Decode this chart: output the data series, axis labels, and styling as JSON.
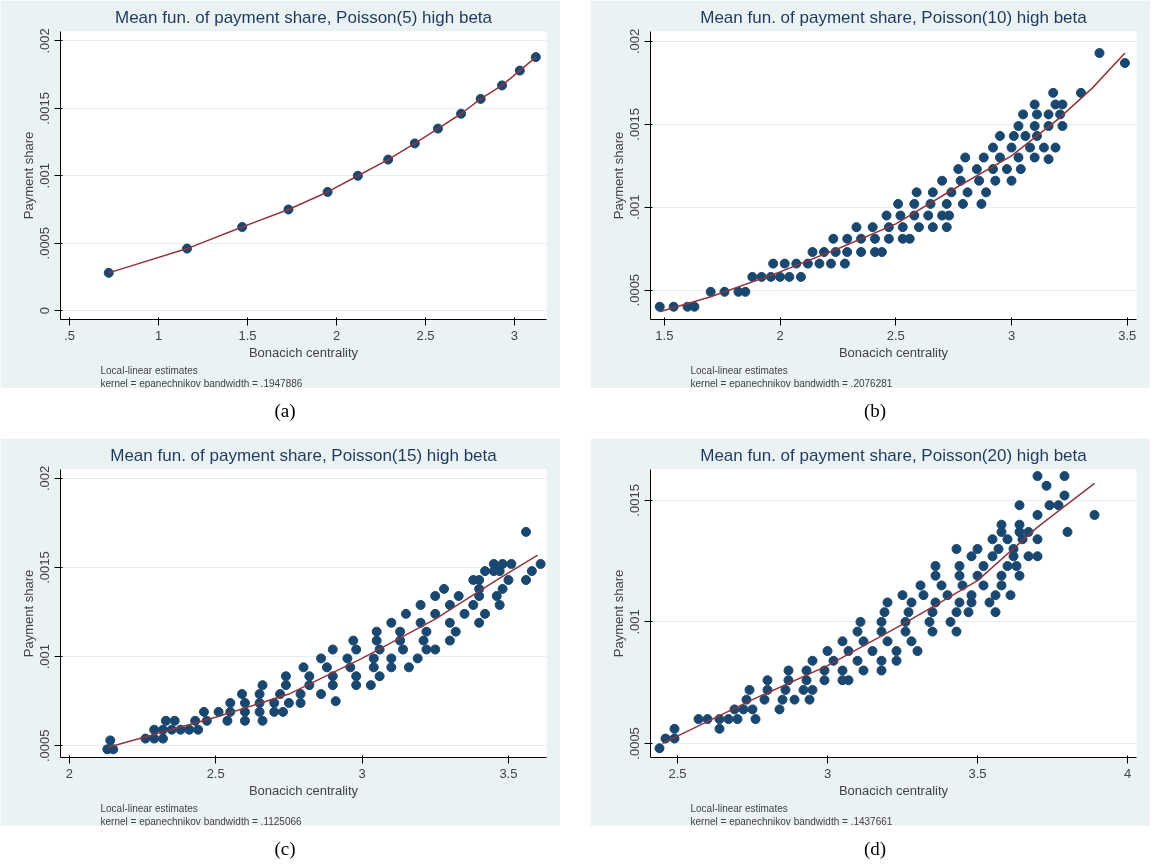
{
  "chart_data": [
    {
      "type": "scatter",
      "title": "Mean fun. of payment share, Poisson(5) high beta",
      "xlabel": "Bonacich centrality",
      "ylabel": "Payment share",
      "xlim": [
        0.449,
        3.18
      ],
      "ylim": [
        -6.6e-05,
        0.00207
      ],
      "xticks": [
        {
          "value": 0.5,
          "label": ".5"
        },
        1,
        1.5,
        2,
        2.5,
        3
      ],
      "yticks": [
        {
          "value": 0,
          "label": "0"
        },
        {
          "value": 0.0005,
          "label": ".0005"
        },
        {
          "value": 0.001,
          "label": ".001"
        },
        {
          "value": 0.0015,
          "label": ".0015"
        },
        {
          "value": 0.002,
          "label": ".002"
        }
      ],
      "grid": "y",
      "annotations": [
        "Local-linear estimates",
        "kernel = epanechnikov bandwidth = .1947886",
        "(a)"
      ],
      "series": [
        {
          "marker": "circle",
          "color": "#1a476f",
          "x": [
            0.72,
            1.16,
            1.47,
            1.73,
            1.95,
            2.12,
            2.29,
            2.44,
            2.57,
            2.7,
            2.81,
            2.93,
            3.03,
            3.12
          ],
          "values": [
            0.00028,
            0.00046,
            0.00062,
            0.00075,
            0.00088,
            0.001,
            0.00112,
            0.00124,
            0.00135,
            0.00146,
            0.00157,
            0.00167,
            0.00178,
            0.00188
          ]
        },
        {
          "type": "line",
          "color": "#90353b",
          "x": [
            0.72,
            1.16,
            1.47,
            1.73,
            1.95,
            2.12,
            2.29,
            2.44,
            2.57,
            2.7,
            2.81,
            2.93,
            3.03,
            3.12
          ],
          "values": [
            0.00028,
            0.00046,
            0.00062,
            0.00075,
            0.00088,
            0.001,
            0.00112,
            0.00124,
            0.00135,
            0.00146,
            0.00157,
            0.00167,
            0.00178,
            0.00188
          ]
        }
      ]
    },
    {
      "type": "scatter",
      "title": "Mean fun. of payment share, Poisson(10) high beta",
      "xlabel": "Bonacich centrality",
      "ylabel": "Payment share",
      "xlim": [
        1.44,
        3.54
      ],
      "ylim": [
        0.000323,
        0.00206
      ],
      "xticks": [
        1.5,
        2,
        2.5,
        3,
        3.5
      ],
      "yticks": [
        {
          "value": 0.0005,
          "label": ".0005"
        },
        {
          "value": 0.001,
          "label": ".001"
        },
        {
          "value": 0.0015,
          "label": ".0015"
        },
        {
          "value": 0.002,
          "label": ".002"
        }
      ],
      "grid": "y",
      "annotations": [
        "Local-linear estimates",
        "kernel = epanechnikov bandwidth = .2076281",
        "(b)"
      ],
      "series": [
        {
          "marker": "circle",
          "color": "#1a476f",
          "x": [
            1.48,
            1.54,
            1.6,
            1.63,
            1.7,
            1.76,
            1.82,
            1.85,
            1.88,
            1.92,
            1.96,
            2.0,
            2.04,
            2.09,
            1.97,
            2.02,
            2.07,
            2.12,
            2.17,
            2.22,
            2.28,
            2.14,
            2.19,
            2.24,
            2.29,
            2.35,
            2.41,
            2.44,
            2.23,
            2.29,
            2.35,
            2.41,
            2.47,
            2.53,
            2.56,
            2.33,
            2.4,
            2.47,
            2.53,
            2.6,
            2.66,
            2.72,
            2.46,
            2.52,
            2.58,
            2.64,
            2.7,
            2.73,
            2.51,
            2.58,
            2.65,
            2.72,
            2.79,
            2.87,
            2.59,
            2.66,
            2.74,
            2.81,
            2.89,
            2.7,
            2.78,
            2.86,
            2.93,
            3.0,
            2.77,
            2.85,
            2.92,
            2.98,
            3.04,
            2.8,
            2.88,
            2.95,
            3.03,
            3.1,
            3.16,
            2.92,
            3.0,
            3.08,
            3.14,
            3.19,
            2.95,
            3.01,
            3.06,
            3.11,
            3.03,
            3.1,
            3.16,
            3.22,
            3.05,
            3.11,
            3.16,
            3.21,
            3.1,
            3.19,
            3.22,
            3.18,
            3.3,
            3.38,
            3.49
          ],
          "values": [
            0.0004,
            0.0004,
            0.0004,
            0.0004,
            0.00049,
            0.00049,
            0.00049,
            0.00049,
            0.00058,
            0.00058,
            0.00058,
            0.00058,
            0.00058,
            0.00058,
            0.00066,
            0.00066,
            0.00066,
            0.00066,
            0.00066,
            0.00066,
            0.00066,
            0.00073,
            0.00073,
            0.00073,
            0.00073,
            0.00073,
            0.00073,
            0.00073,
            0.00081,
            0.00081,
            0.00081,
            0.00081,
            0.00081,
            0.00081,
            0.00081,
            0.00088,
            0.00088,
            0.00088,
            0.00088,
            0.00088,
            0.00088,
            0.00088,
            0.00095,
            0.00095,
            0.00095,
            0.00095,
            0.00095,
            0.00095,
            0.00102,
            0.00102,
            0.00102,
            0.00102,
            0.00102,
            0.00102,
            0.00109,
            0.00109,
            0.00109,
            0.00109,
            0.00109,
            0.00116,
            0.00116,
            0.00116,
            0.00116,
            0.00116,
            0.00123,
            0.00123,
            0.00123,
            0.00123,
            0.00123,
            0.0013,
            0.0013,
            0.0013,
            0.0013,
            0.0013,
            0.00129,
            0.00136,
            0.00136,
            0.00136,
            0.00136,
            0.00136,
            0.00143,
            0.00143,
            0.00143,
            0.00143,
            0.00149,
            0.00149,
            0.00149,
            0.00149,
            0.00156,
            0.00156,
            0.00156,
            0.00156,
            0.00162,
            0.00162,
            0.00162,
            0.00169,
            0.00169,
            0.00193,
            0.00187
          ]
        },
        {
          "type": "line",
          "color": "#90353b",
          "x": [
            1.48,
            1.7,
            2.0,
            2.25,
            2.5,
            2.75,
            3.0,
            3.2,
            3.35,
            3.49
          ],
          "values": [
            0.00037,
            0.00046,
            0.00061,
            0.00075,
            0.0009,
            0.00111,
            0.00131,
            0.00153,
            0.00172,
            0.00193
          ]
        }
      ]
    },
    {
      "type": "scatter",
      "title": "Mean fun. of payment share, Poisson(15) high beta",
      "xlabel": "Bonacich centrality",
      "ylabel": "Payment share",
      "xlim": [
        1.97,
        3.63
      ],
      "ylim": [
        0.000434,
        0.00205
      ],
      "xticks": [
        2,
        2.5,
        3,
        3.5
      ],
      "yticks": [
        {
          "value": 0.0005,
          "label": ".0005"
        },
        {
          "value": 0.001,
          "label": ".001"
        },
        {
          "value": 0.0015,
          "label": ".0015"
        },
        {
          "value": 0.002,
          "label": ".002"
        }
      ],
      "grid": "y",
      "annotations": [
        "Local-linear estimates",
        "kernel = epanechnikov bandwidth = .1125066",
        "(c)"
      ],
      "series": [
        {
          "marker": "circle",
          "color": "#1a476f",
          "x": [
            2.13,
            2.15,
            2.14,
            2.26,
            2.29,
            2.32,
            2.29,
            2.32,
            2.35,
            2.38,
            2.41,
            2.44,
            2.33,
            2.36,
            2.43,
            2.47,
            2.54,
            2.6,
            2.66,
            2.46,
            2.51,
            2.55,
            2.6,
            2.65,
            2.7,
            2.73,
            2.55,
            2.6,
            2.65,
            2.7,
            2.75,
            2.79,
            2.91,
            2.59,
            2.65,
            2.72,
            2.79,
            2.86,
            2.66,
            2.74,
            2.82,
            2.9,
            2.98,
            3.03,
            2.74,
            2.82,
            2.9,
            2.98,
            3.06,
            2.8,
            2.88,
            2.96,
            3.04,
            3.1,
            3.16,
            2.86,
            2.95,
            3.04,
            3.1,
            3.19,
            2.9,
            2.98,
            3.06,
            3.14,
            3.22,
            3.25,
            2.97,
            3.05,
            3.13,
            3.21,
            3.3,
            3.05,
            3.13,
            3.22,
            3.32,
            3.1,
            3.2,
            3.3,
            3.4,
            3.15,
            3.25,
            3.35,
            3.42,
            3.2,
            3.3,
            3.38,
            3.47,
            3.25,
            3.33,
            3.4,
            3.46,
            3.28,
            3.4,
            3.48,
            3.38,
            3.4,
            3.5,
            3.56,
            3.42,
            3.45,
            3.47,
            3.58,
            3.45,
            3.48,
            3.51,
            3.61,
            3.56
          ],
          "values": [
            0.00048,
            0.00048,
            0.00053,
            0.00054,
            0.00054,
            0.00054,
            0.00059,
            0.00059,
            0.00059,
            0.00059,
            0.00059,
            0.00059,
            0.00064,
            0.00064,
            0.00064,
            0.00064,
            0.00064,
            0.00064,
            0.00064,
            0.00069,
            0.00069,
            0.00069,
            0.00069,
            0.00069,
            0.00069,
            0.00069,
            0.00074,
            0.00074,
            0.00074,
            0.00074,
            0.00074,
            0.00074,
            0.00075,
            0.00079,
            0.00079,
            0.00079,
            0.00079,
            0.00079,
            0.00084,
            0.00084,
            0.00084,
            0.00084,
            0.00084,
            0.00084,
            0.00089,
            0.00089,
            0.00089,
            0.00089,
            0.00089,
            0.00094,
            0.00094,
            0.00094,
            0.00094,
            0.00094,
            0.00094,
            0.00099,
            0.00099,
            0.00099,
            0.00099,
            0.00099,
            0.00104,
            0.00104,
            0.00104,
            0.00104,
            0.00104,
            0.00104,
            0.00109,
            0.00109,
            0.00109,
            0.00109,
            0.00109,
            0.00114,
            0.00114,
            0.00114,
            0.00114,
            0.00119,
            0.00119,
            0.00119,
            0.00119,
            0.00124,
            0.00124,
            0.00124,
            0.00124,
            0.00129,
            0.00129,
            0.00129,
            0.00129,
            0.00134,
            0.00134,
            0.00134,
            0.00134,
            0.00138,
            0.00138,
            0.00138,
            0.00143,
            0.00143,
            0.00143,
            0.00143,
            0.00148,
            0.00148,
            0.00148,
            0.00148,
            0.00152,
            0.00152,
            0.00152,
            0.00152,
            0.0017
          ]
        },
        {
          "type": "line",
          "color": "#90353b",
          "x": [
            2.13,
            2.5,
            2.75,
            3.0,
            3.25,
            3.45,
            3.6
          ],
          "values": [
            0.00049,
            0.00066,
            0.00079,
            0.00099,
            0.00121,
            0.00142,
            0.00157
          ]
        }
      ]
    },
    {
      "type": "scatter",
      "title": "Mean fun. of payment share, Poisson(20) high beta",
      "xlabel": "Bonacich centrality",
      "ylabel": "Payment share",
      "xlim": [
        2.41,
        4.03
      ],
      "ylim": [
        0.000442,
        0.001627
      ],
      "xticks": [
        2.5,
        3,
        3.5,
        4
      ],
      "yticks": [
        {
          "value": 0.0005,
          "label": ".0005"
        },
        {
          "value": 0.001,
          "label": ".001"
        },
        {
          "value": 0.0015,
          "label": ".0015"
        }
      ],
      "grid": "y",
      "annotations": [
        "Local-linear estimates",
        "kernel = epanechnikov bandwidth = .1437661",
        "(d)"
      ],
      "series": [
        {
          "marker": "circle",
          "color": "#1a476f",
          "x": [
            2.44,
            2.46,
            2.49,
            2.49,
            2.64,
            2.57,
            2.6,
            2.64,
            2.67,
            2.7,
            2.76,
            2.69,
            2.72,
            2.75,
            2.84,
            2.73,
            2.79,
            2.85,
            2.89,
            2.94,
            2.74,
            2.8,
            2.86,
            2.92,
            2.95,
            2.8,
            2.87,
            2.93,
            2.99,
            3.05,
            3.07,
            2.87,
            2.93,
            2.99,
            3.05,
            3.12,
            3.18,
            2.95,
            3.02,
            3.1,
            3.18,
            3.23,
            3.0,
            3.07,
            3.15,
            3.23,
            3.3,
            3.05,
            3.12,
            3.2,
            3.28,
            3.1,
            3.18,
            3.26,
            3.35,
            3.43,
            3.11,
            3.18,
            3.26,
            3.34,
            3.41,
            3.19,
            3.27,
            3.35,
            3.43,
            3.47,
            3.56,
            3.2,
            3.28,
            3.36,
            3.44,
            3.48,
            3.54,
            3.25,
            3.32,
            3.4,
            3.48,
            3.56,
            3.61,
            3.31,
            3.38,
            3.45,
            3.52,
            3.58,
            3.36,
            3.44,
            3.5,
            3.58,
            3.64,
            3.36,
            3.44,
            3.52,
            3.6,
            3.63,
            3.48,
            3.55,
            3.62,
            3.67,
            3.7,
            3.43,
            3.5,
            3.57,
            3.62,
            3.55,
            3.6,
            3.65,
            3.7,
            3.58,
            3.64,
            3.67,
            3.8,
            3.58,
            3.64,
            3.89,
            3.7,
            3.64,
            3.74,
            3.77,
            3.79,
            3.73,
            3.7,
            3.79
          ],
          "values": [
            0.00048,
            0.00052,
            0.00052,
            0.00056,
            0.00056,
            0.0006,
            0.0006,
            0.0006,
            0.0006,
            0.0006,
            0.0006,
            0.00064,
            0.00064,
            0.00064,
            0.00064,
            0.00068,
            0.00068,
            0.00068,
            0.00068,
            0.00068,
            0.00072,
            0.00072,
            0.00072,
            0.00072,
            0.00072,
            0.00076,
            0.00076,
            0.00076,
            0.00076,
            0.00076,
            0.00076,
            0.0008,
            0.0008,
            0.0008,
            0.0008,
            0.0008,
            0.0008,
            0.00084,
            0.00084,
            0.00084,
            0.00084,
            0.00084,
            0.00088,
            0.00088,
            0.00088,
            0.00088,
            0.00088,
            0.00092,
            0.00092,
            0.00092,
            0.00092,
            0.00096,
            0.00096,
            0.00096,
            0.00096,
            0.00096,
            0.001,
            0.001,
            0.001,
            0.001,
            0.001,
            0.00104,
            0.00104,
            0.00104,
            0.00104,
            0.00104,
            0.00104,
            0.00108,
            0.00108,
            0.00108,
            0.00108,
            0.00108,
            0.00108,
            0.00111,
            0.00111,
            0.00111,
            0.00111,
            0.00111,
            0.00111,
            0.00115,
            0.00115,
            0.00115,
            0.00115,
            0.00115,
            0.00119,
            0.00119,
            0.00119,
            0.00119,
            0.00119,
            0.00123,
            0.00123,
            0.00123,
            0.00123,
            0.00123,
            0.00127,
            0.00127,
            0.00127,
            0.00127,
            0.00127,
            0.0013,
            0.0013,
            0.0013,
            0.0013,
            0.00134,
            0.00134,
            0.00134,
            0.00134,
            0.00137,
            0.00137,
            0.00137,
            0.00137,
            0.0014,
            0.0014,
            0.00144,
            0.00144,
            0.00148,
            0.00148,
            0.00148,
            0.00152,
            0.00156,
            0.0016,
            0.0016
          ]
        },
        {
          "type": "line",
          "color": "#90353b",
          "x": [
            2.45,
            2.75,
            3.0,
            3.25,
            3.5,
            3.7,
            3.89
          ],
          "values": [
            0.0005,
            0.00068,
            0.00082,
            0.00099,
            0.00117,
            0.00139,
            0.00157
          ]
        }
      ]
    }
  ]
}
